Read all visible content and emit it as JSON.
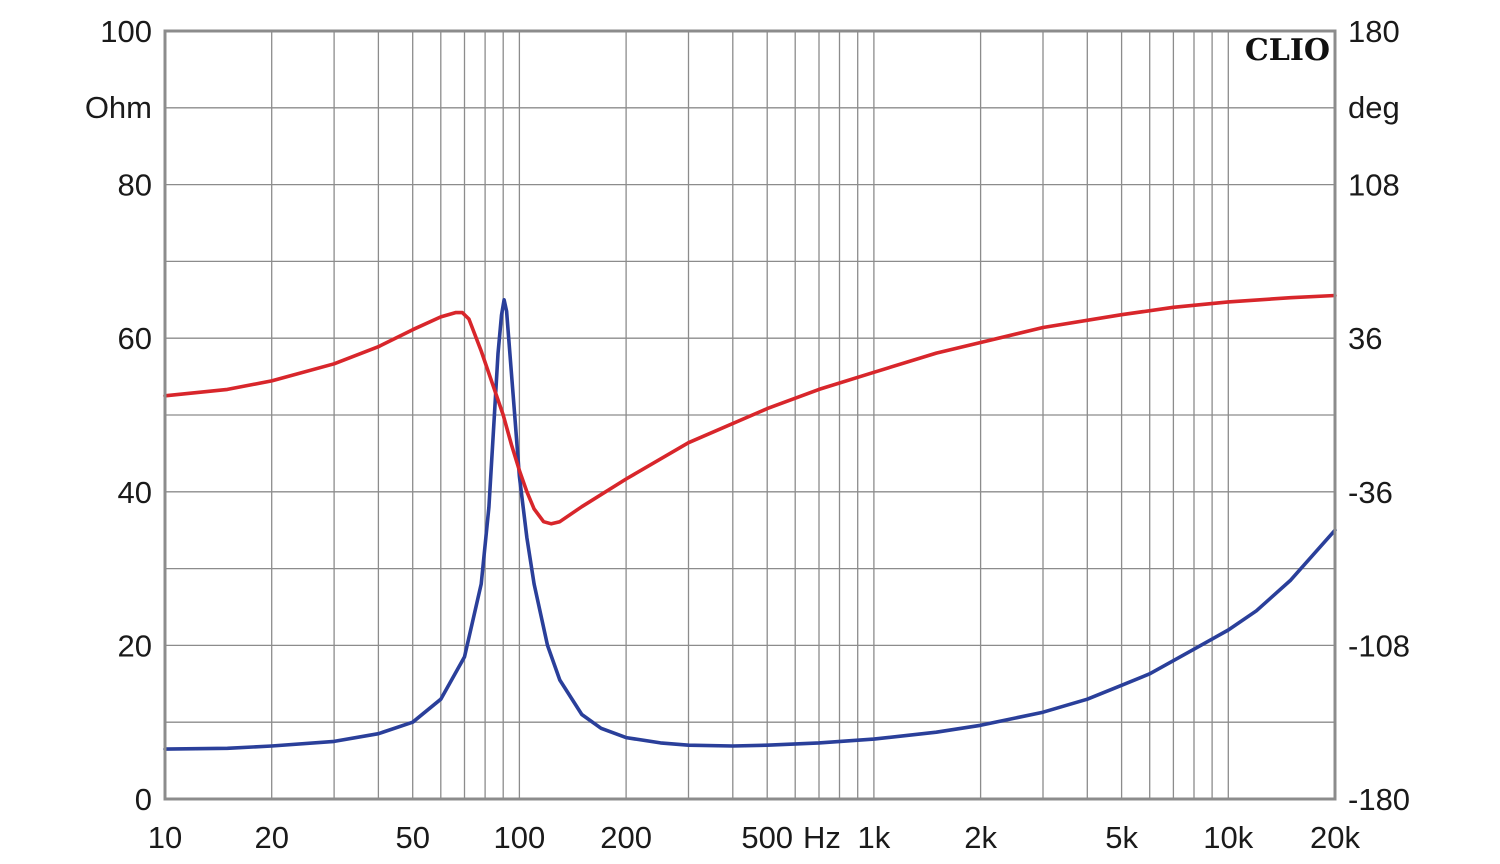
{
  "chart_data": {
    "type": "line",
    "brand": "CLIO",
    "x_scale": "log",
    "xlim": [
      10,
      20000
    ],
    "x_ticks": [
      {
        "value": 10,
        "label": "10"
      },
      {
        "value": 20,
        "label": "20"
      },
      {
        "value": 50,
        "label": "50"
      },
      {
        "value": 100,
        "label": "100"
      },
      {
        "value": 200,
        "label": "200"
      },
      {
        "value": 500,
        "label": "500"
      },
      {
        "value": 1000,
        "label": "1k"
      },
      {
        "value": 2000,
        "label": "2k"
      },
      {
        "value": 5000,
        "label": "5k"
      },
      {
        "value": 10000,
        "label": "10k"
      },
      {
        "value": 20000,
        "label": "20k"
      }
    ],
    "x_unit": "Hz",
    "y_left": {
      "unit": "Ohm",
      "lim": [
        0,
        100
      ],
      "ticks": [
        0,
        20,
        40,
        60,
        80,
        100
      ]
    },
    "y_right": {
      "unit": "deg",
      "lim": [
        -180,
        180
      ],
      "ticks": [
        -180,
        -108,
        -36,
        36,
        108,
        180
      ]
    },
    "grid": true,
    "series": [
      {
        "axis": "left",
        "color": "#2a3f9a",
        "points": [
          [
            10,
            6.5
          ],
          [
            15,
            6.6
          ],
          [
            20,
            6.9
          ],
          [
            30,
            7.5
          ],
          [
            40,
            8.5
          ],
          [
            50,
            10
          ],
          [
            60,
            13
          ],
          [
            70,
            18.5
          ],
          [
            78,
            28
          ],
          [
            82,
            38
          ],
          [
            85,
            50
          ],
          [
            87,
            58
          ],
          [
            89,
            63
          ],
          [
            90.5,
            65
          ],
          [
            92,
            63.5
          ],
          [
            94,
            58
          ],
          [
            97,
            50
          ],
          [
            100,
            42
          ],
          [
            105,
            34
          ],
          [
            110,
            28
          ],
          [
            120,
            20
          ],
          [
            130,
            15.5
          ],
          [
            150,
            11
          ],
          [
            170,
            9.2
          ],
          [
            200,
            8.0
          ],
          [
            250,
            7.3
          ],
          [
            300,
            7.0
          ],
          [
            400,
            6.9
          ],
          [
            500,
            7.0
          ],
          [
            700,
            7.3
          ],
          [
            1000,
            7.8
          ],
          [
            1500,
            8.7
          ],
          [
            2000,
            9.6
          ],
          [
            3000,
            11.3
          ],
          [
            4000,
            13
          ],
          [
            5000,
            14.8
          ],
          [
            6000,
            16.3
          ],
          [
            8000,
            19.5
          ],
          [
            10000,
            22
          ],
          [
            12000,
            24.5
          ],
          [
            15000,
            28.5
          ],
          [
            20000,
            35
          ]
        ]
      },
      {
        "axis": "right",
        "color": "#d8262b",
        "points": [
          [
            10,
            9
          ],
          [
            15,
            12
          ],
          [
            20,
            16
          ],
          [
            30,
            24
          ],
          [
            40,
            32
          ],
          [
            50,
            40
          ],
          [
            60,
            46
          ],
          [
            66,
            48
          ],
          [
            69,
            48
          ],
          [
            72,
            45
          ],
          [
            78,
            30
          ],
          [
            85,
            12
          ],
          [
            90,
            0
          ],
          [
            95,
            -14
          ],
          [
            100,
            -26
          ],
          [
            105,
            -36
          ],
          [
            110,
            -44
          ],
          [
            117,
            -50
          ],
          [
            123,
            -51
          ],
          [
            130,
            -50
          ],
          [
            150,
            -43
          ],
          [
            200,
            -30
          ],
          [
            300,
            -13
          ],
          [
            500,
            3
          ],
          [
            700,
            12
          ],
          [
            1000,
            20
          ],
          [
            1500,
            29
          ],
          [
            2000,
            34
          ],
          [
            3000,
            41
          ],
          [
            5000,
            47
          ],
          [
            7000,
            50.5
          ],
          [
            10000,
            53
          ],
          [
            15000,
            55
          ],
          [
            20000,
            56
          ]
        ]
      }
    ]
  }
}
